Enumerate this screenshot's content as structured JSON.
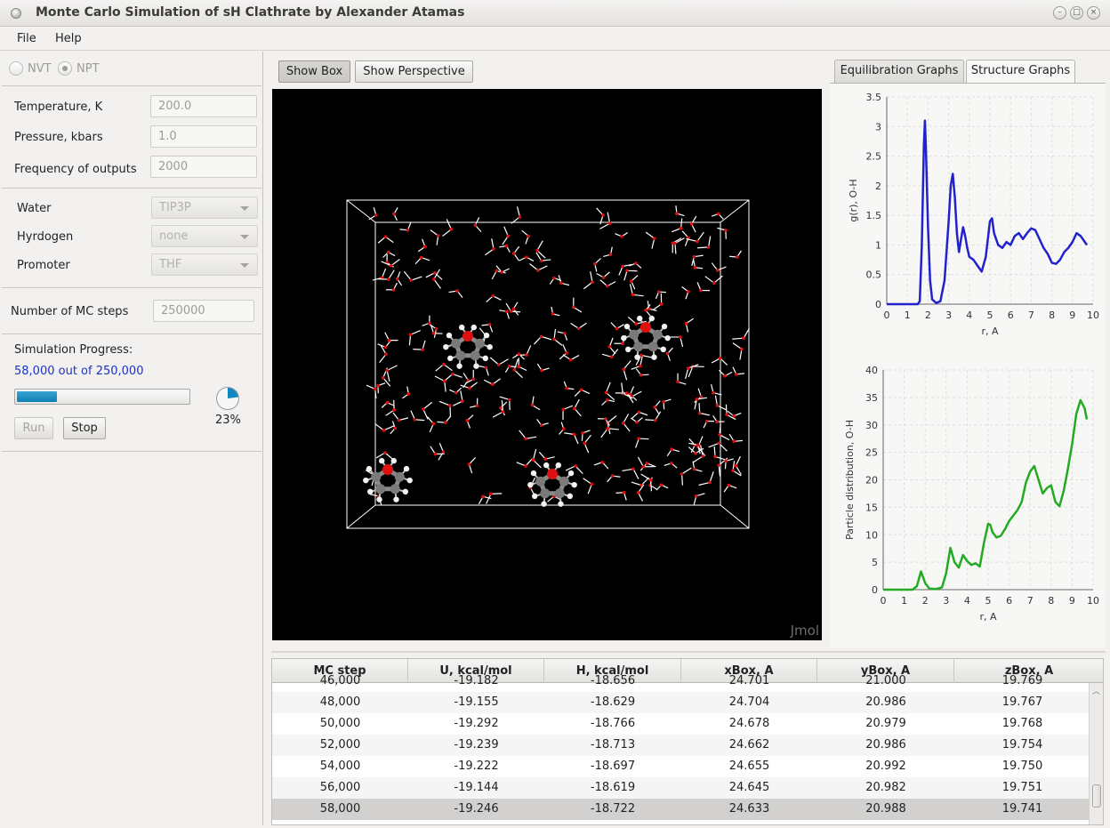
{
  "window": {
    "title": "Monte Carlo Simulation of sH Clathrate by Alexander Atamas"
  },
  "menu": {
    "items": [
      "File",
      "Help"
    ]
  },
  "ensemble": {
    "nvt_label": "NVT",
    "npt_label": "NPT",
    "selected": "NPT"
  },
  "params": {
    "temperature_label": "Temperature, K",
    "temperature_value": "200.0",
    "pressure_label": "Pressure, kbars",
    "pressure_value": "1.0",
    "frequency_label": "Frequency of outputs",
    "frequency_value": "2000"
  },
  "models": {
    "water_label": "Water",
    "water_value": "TIP3P",
    "hydrogen_label": "Hyrdogen",
    "hydrogen_value": "none",
    "promoter_label": "Promoter",
    "promoter_value": "THF"
  },
  "steps": {
    "label": "Number of MC steps",
    "value": "250000"
  },
  "progress": {
    "label": "Simulation Progress:",
    "status": "58,000 out of 250,000",
    "fraction": 0.23,
    "percent_text": "23%",
    "run_label": "Run",
    "stop_label": "Stop"
  },
  "viewer": {
    "show_box_label": "Show Box",
    "show_perspective_label": "Show Perspective",
    "watermark": "Jmol"
  },
  "tabs": [
    {
      "label": "Equilibration Graphs",
      "active": false
    },
    {
      "label": "Structure Graphs",
      "active": true
    }
  ],
  "colors": {
    "rdf_line": "#2222cc",
    "dist_line": "#22aa22",
    "progress_fill": "#1388bf",
    "oxygen": "#e01010",
    "carbon": "#7a7a7a"
  },
  "chart_data": [
    {
      "type": "line",
      "xlabel": "r, A",
      "ylabel": "g(r), O-H",
      "xlim": [
        0,
        10
      ],
      "ylim": [
        0,
        3.5
      ],
      "xticks": [
        "0",
        "1",
        "2",
        "3",
        "4",
        "5",
        "6",
        "7",
        "8",
        "9",
        "10"
      ],
      "yticks": [
        "0",
        "0.5",
        "1",
        "1.5",
        "2",
        "2.5",
        "3",
        "3.5"
      ],
      "grid": true,
      "x": [
        0.0,
        1.5,
        1.6,
        1.7,
        1.8,
        1.85,
        1.9,
        2.0,
        2.1,
        2.2,
        2.4,
        2.6,
        2.8,
        3.0,
        3.1,
        3.2,
        3.3,
        3.4,
        3.5,
        3.6,
        3.7,
        3.8,
        3.9,
        4.0,
        4.2,
        4.4,
        4.6,
        4.8,
        5.0,
        5.1,
        5.2,
        5.4,
        5.6,
        5.8,
        6.0,
        6.2,
        6.4,
        6.6,
        6.8,
        7.0,
        7.2,
        7.4,
        7.6,
        7.8,
        8.0,
        8.2,
        8.4,
        8.6,
        8.8,
        9.0,
        9.2,
        9.4,
        9.6,
        9.7
      ],
      "y": [
        0.0,
        0.0,
        0.05,
        1.0,
        2.7,
        3.1,
        2.6,
        1.3,
        0.4,
        0.08,
        0.02,
        0.05,
        0.4,
        1.4,
        2.0,
        2.2,
        1.8,
        1.2,
        0.88,
        1.1,
        1.3,
        1.15,
        0.95,
        0.8,
        0.75,
        0.65,
        0.55,
        0.8,
        1.4,
        1.45,
        1.2,
        1.0,
        0.95,
        1.05,
        1.0,
        1.15,
        1.2,
        1.1,
        1.2,
        1.28,
        1.25,
        1.1,
        0.95,
        0.85,
        0.7,
        0.68,
        0.75,
        0.88,
        0.95,
        1.05,
        1.2,
        1.15,
        1.05,
        1.0
      ]
    },
    {
      "type": "line",
      "xlabel": "r, A",
      "ylabel": "Particle distribution, O-H",
      "xlim": [
        0,
        10
      ],
      "ylim": [
        0,
        40
      ],
      "xticks": [
        "0",
        "1",
        "2",
        "3",
        "4",
        "5",
        "6",
        "7",
        "8",
        "9",
        "10"
      ],
      "yticks": [
        "0",
        "5",
        "10",
        "15",
        "20",
        "25",
        "30",
        "35",
        "40"
      ],
      "grid": true,
      "x": [
        0.0,
        1.4,
        1.6,
        1.8,
        2.0,
        2.2,
        2.5,
        2.8,
        3.0,
        3.2,
        3.4,
        3.6,
        3.8,
        4.0,
        4.2,
        4.4,
        4.6,
        4.8,
        5.0,
        5.1,
        5.2,
        5.4,
        5.6,
        5.8,
        6.0,
        6.2,
        6.4,
        6.6,
        6.8,
        7.0,
        7.2,
        7.4,
        7.6,
        7.8,
        8.0,
        8.2,
        8.4,
        8.6,
        8.8,
        9.0,
        9.2,
        9.4,
        9.6,
        9.7
      ],
      "y": [
        0.0,
        0.0,
        0.6,
        3.3,
        1.2,
        0.2,
        0.1,
        0.4,
        3.0,
        7.6,
        5.0,
        4.0,
        6.3,
        5.2,
        4.5,
        4.8,
        4.2,
        8.5,
        12.0,
        11.8,
        10.5,
        9.5,
        9.8,
        11.0,
        12.5,
        13.5,
        14.5,
        16.0,
        19.5,
        21.5,
        22.5,
        20.0,
        17.5,
        18.5,
        19.0,
        16.0,
        15.2,
        18.0,
        22.0,
        26.5,
        32.0,
        34.5,
        33.0,
        31.0
      ]
    }
  ],
  "table": {
    "columns": [
      "MC step",
      "U, kcal/mol",
      "H, kcal/mol",
      "xBox, A",
      "yBox, A",
      "zBox, A"
    ],
    "rows": [
      [
        "46,000",
        "-19.182",
        "-18.656",
        "24.701",
        "21.000",
        "19.769"
      ],
      [
        "48,000",
        "-19.155",
        "-18.629",
        "24.704",
        "20.986",
        "19.767"
      ],
      [
        "50,000",
        "-19.292",
        "-18.766",
        "24.678",
        "20.979",
        "19.768"
      ],
      [
        "52,000",
        "-19.239",
        "-18.713",
        "24.662",
        "20.986",
        "19.754"
      ],
      [
        "54,000",
        "-19.222",
        "-18.697",
        "24.655",
        "20.992",
        "19.750"
      ],
      [
        "56,000",
        "-19.144",
        "-18.619",
        "24.645",
        "20.982",
        "19.751"
      ],
      [
        "58,000",
        "-19.246",
        "-18.722",
        "24.633",
        "20.988",
        "19.741"
      ]
    ],
    "selected_row": 6
  }
}
